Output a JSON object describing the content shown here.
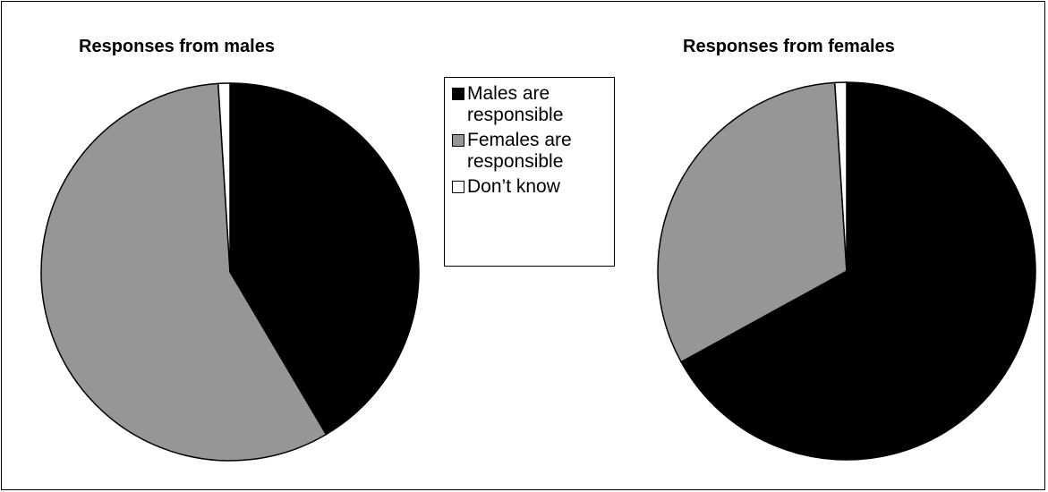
{
  "chart_data": [
    {
      "type": "pie",
      "title": "Responses from males",
      "categories": [
        "Males are responsible",
        "Females are responsible",
        "Don’t know"
      ],
      "values": [
        41.5,
        57.5,
        1
      ],
      "colors": [
        "#000000",
        "#969696",
        "#ffffff"
      ]
    },
    {
      "type": "pie",
      "title": "Responses from females",
      "categories": [
        "Males are responsible",
        "Females are responsible",
        "Don’t know"
      ],
      "values": [
        67,
        32,
        1
      ],
      "colors": [
        "#000000",
        "#969696",
        "#ffffff"
      ]
    }
  ],
  "legend": {
    "items": [
      {
        "label": "Males are\nresponsible",
        "color": "#000000"
      },
      {
        "label": "Females are\nresponsible",
        "color": "#969696"
      },
      {
        "label": "Don’t know",
        "color": "#ffffff"
      }
    ]
  }
}
